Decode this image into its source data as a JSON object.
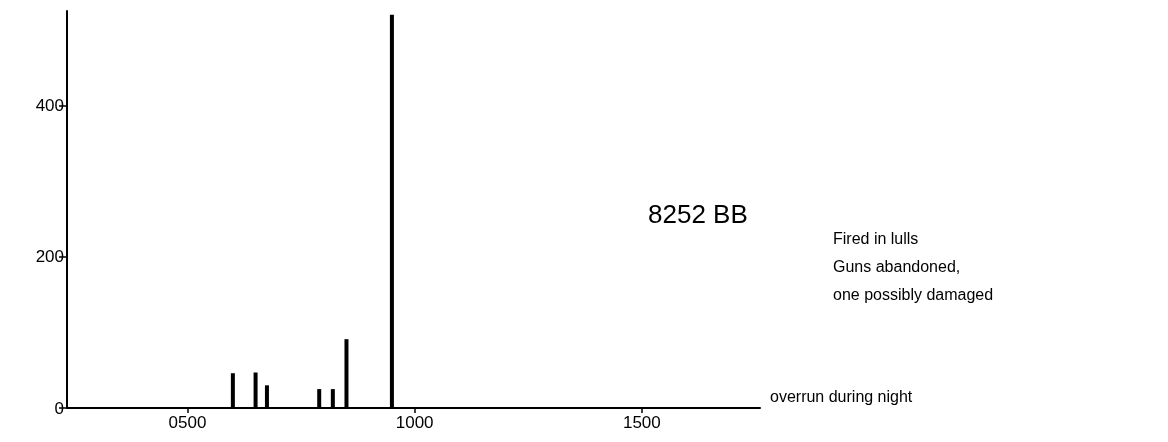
{
  "chart_data": {
    "type": "bar",
    "title": "8252 BB",
    "x": [
      600,
      650,
      675,
      790,
      820,
      850,
      950
    ],
    "values": [
      46,
      47,
      30,
      25,
      25,
      91,
      520
    ],
    "color": "#000000",
    "xlim": [
      235,
      1760
    ],
    "xticks": [
      {
        "value": 500,
        "label": "0500"
      },
      1000,
      1500
    ],
    "ylim": [
      0,
      525
    ],
    "yticks": [
      0,
      200,
      400
    ],
    "annotations": [
      "overrun during night",
      "Fired in lulls",
      "Guns abandoned,",
      "one possibly damaged"
    ],
    "grid": false
  }
}
